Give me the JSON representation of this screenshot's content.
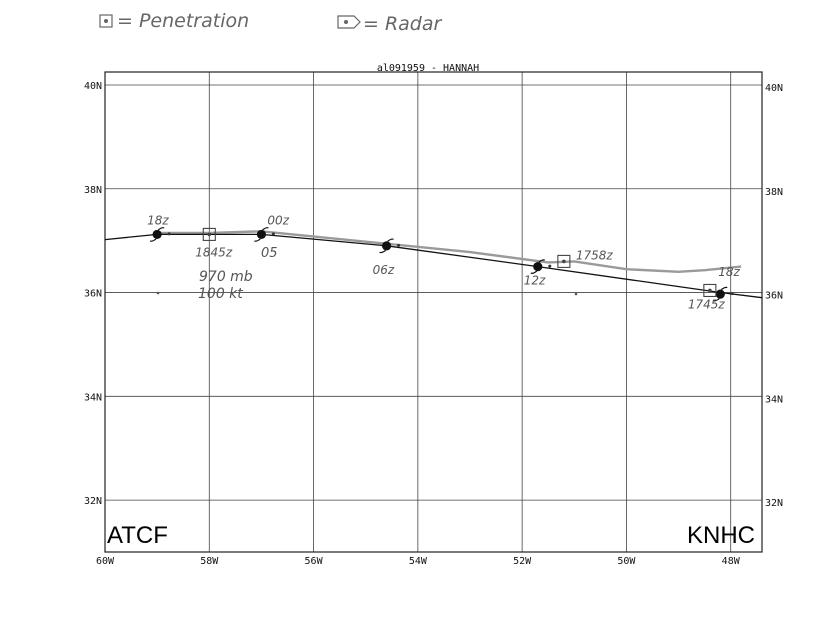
{
  "legend": {
    "penetration_label": "= Penetration",
    "radar_label": "= Radar"
  },
  "title": "al091959 - HANNAH",
  "corner_labels": {
    "left": "ATCF",
    "right": "KNHC"
  },
  "axes": {
    "lon_ticks": [
      "60W",
      "58W",
      "56W",
      "54W",
      "52W",
      "50W",
      "48W"
    ],
    "lat_ticks": [
      "40N",
      "38N",
      "36N",
      "34N",
      "32N"
    ],
    "lon_range": [
      -60,
      -47.4
    ],
    "lat_range": [
      31,
      40.25
    ]
  },
  "tracks": {
    "best_track": [
      {
        "lon": -61,
        "lat": 37.02
      },
      {
        "lon": -59.0,
        "lat": 37.12
      },
      {
        "lon": -57.0,
        "lat": 37.12
      },
      {
        "lon": -54.6,
        "lat": 36.9
      },
      {
        "lon": -51.7,
        "lat": 36.5
      },
      {
        "lon": -48.2,
        "lat": 36.0
      },
      {
        "lon": -47.4,
        "lat": 35.9
      }
    ],
    "gray_track": [
      {
        "lon": -59.0,
        "lat": 37.15
      },
      {
        "lon": -58.0,
        "lat": 37.15
      },
      {
        "lon": -57.0,
        "lat": 37.18
      },
      {
        "lon": -55.0,
        "lat": 36.98
      },
      {
        "lon": -53.0,
        "lat": 36.78
      },
      {
        "lon": -51.5,
        "lat": 36.58
      },
      {
        "lon": -51.0,
        "lat": 36.6
      },
      {
        "lon": -50.0,
        "lat": 36.45
      },
      {
        "lon": -49.0,
        "lat": 36.4
      },
      {
        "lon": -48.5,
        "lat": 36.43
      },
      {
        "lon": -47.8,
        "lat": 36.5
      }
    ]
  },
  "storm_positions": [
    {
      "lon": -59.0,
      "lat": 37.12,
      "label": "18z"
    },
    {
      "lon": -57.0,
      "lat": 37.12,
      "label": "00z"
    },
    {
      "lon": -54.6,
      "lat": 36.9,
      "label": "06z"
    },
    {
      "lon": -51.7,
      "lat": 36.5,
      "label": "12z"
    },
    {
      "lon": -48.2,
      "lat": 35.97,
      "label": "18z"
    }
  ],
  "fixes": [
    {
      "lon": -58.0,
      "lat": 37.12,
      "label": "1845z"
    },
    {
      "lon": -51.2,
      "lat": 36.6,
      "label": "1758z"
    },
    {
      "lon": -48.4,
      "lat": 36.04,
      "label": "1745z"
    }
  ],
  "annotations": {
    "day": "05",
    "pressure": "970 mb",
    "wind": "100 kt"
  },
  "colors": {
    "best_track": "#111111",
    "gray_track": "#9a9a9a",
    "grid": "#444444",
    "ink": "#555555"
  }
}
